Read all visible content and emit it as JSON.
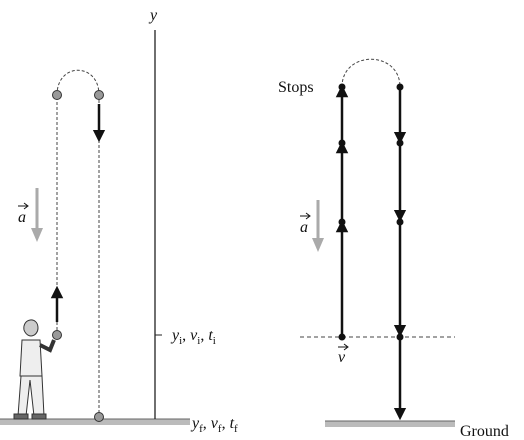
{
  "left_panel": {
    "axis_label": "y",
    "initial_label": [
      {
        "base": "y",
        "sub": "i"
      },
      {
        "base": "v",
        "sub": "i"
      },
      {
        "base": "t",
        "sub": "i"
      }
    ],
    "final_label": [
      {
        "base": "y",
        "sub": "f"
      },
      {
        "base": "v",
        "sub": "f"
      },
      {
        "base": "t",
        "sub": "f"
      }
    ],
    "separator": ",",
    "acceleration_label": "a"
  },
  "right_panel": {
    "stops_label": "Stops",
    "ground_label": "Ground",
    "acceleration_label": "a",
    "velocity_label": "v"
  }
}
